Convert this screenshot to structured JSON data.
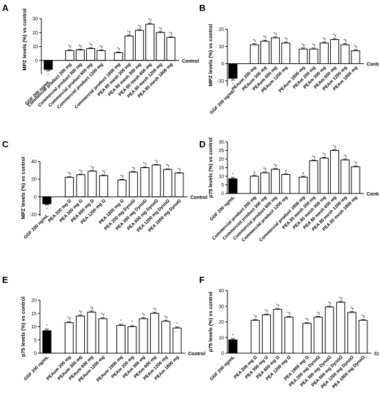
{
  "chart_data": [
    {
      "panel": "A",
      "type": "bar",
      "ylabel": "MPZ levels (%) vs control",
      "baseline_label": "Control",
      "yticks": [
        0,
        10,
        20,
        30
      ],
      "ylim": [
        -10,
        32
      ],
      "categories": [
        "GGF 200 ng/mL",
        "Commercial product 200 mg",
        "Commercial product 300 mg",
        "Commercial product 600 mg",
        "Commercial product 1200 mg",
        "Commercial product 1800 mg",
        "PEA 80 mesh 200 mg",
        "PEA 80 mesh 300 mg",
        "PEA 80 mesh 600 mg",
        "PEA 80 mesh 1200 mg",
        "PEA 80 mesh 1800 mg"
      ],
      "values": [
        -6.5,
        7,
        7.5,
        8.5,
        7,
        5.5,
        17.5,
        21.5,
        26,
        20,
        16.5
      ],
      "errors": [
        1,
        0.7,
        0.6,
        0.6,
        0.6,
        0.6,
        0.7,
        0.7,
        0.7,
        0.7,
        0.6
      ],
      "annotations": [
        "*",
        "*γ",
        "*γ",
        "*γ",
        "*γ",
        "*γ",
        "*γ",
        "*γ",
        "*γ",
        "*γ",
        "*γ"
      ],
      "groups": [
        1,
        5
      ]
    },
    {
      "panel": "B",
      "type": "bar",
      "ylabel": "MPZ levels (%) vs control",
      "baseline_label": "Control",
      "yticks": [
        -10,
        0,
        10,
        20
      ],
      "ylim": [
        -13,
        21
      ],
      "categories": [
        "GGF 200 ng/mL",
        "PEAum 200 mg",
        "PEAum 300 mg",
        "PEAum 600 mg",
        "PEAum 1200 mg",
        "PEAum 1800 mg",
        "PEAm 200 mg",
        "PEAm 300 mg",
        "PEAm 600 mg",
        "PEAm 1200 mg",
        "PEAm 1800 mg"
      ],
      "values": [
        -8.5,
        11,
        13,
        15,
        12,
        8.5,
        8.5,
        12,
        14,
        11,
        7.5
      ],
      "errors": [
        1,
        0.6,
        0.6,
        0.6,
        0.6,
        0.6,
        0.6,
        0.6,
        0.6,
        0.6,
        0.6
      ],
      "annotations": [
        "*",
        "*γ",
        "*γ",
        "*γ",
        "*γ",
        "*γ",
        "*γ",
        "*γ",
        "*γ",
        "*γ",
        "*γ"
      ],
      "groups": [
        1,
        5
      ]
    },
    {
      "panel": "C",
      "type": "bar",
      "ylabel": "MPZ levels (%) vs control",
      "baseline_label": "Control",
      "yticks": [
        -20,
        0,
        20,
        40
      ],
      "ylim": [
        -22,
        42
      ],
      "categories": [
        "GGF 200 ng/mL",
        "PEA 200 mg Ω",
        "PEA 300 mg Ω",
        "PEA 600 mg Ω",
        "PEA 1200 mg Ω",
        "PEA 1800 mg Ω",
        "PEA 200 mg DynoΩ",
        "PEA 300 mg DynoΩ",
        "PEA 600 mg DynoΩ",
        "PEA 1200 mg DynoΩ",
        "PEA 1800 mg DynoΩ"
      ],
      "values": [
        -8,
        22,
        25,
        29,
        24,
        19,
        28,
        33,
        36,
        31,
        27
      ],
      "errors": [
        1,
        0.7,
        0.7,
        0.7,
        0.7,
        0.7,
        0.7,
        0.7,
        0.7,
        0.7,
        0.7
      ],
      "annotations": [
        "*",
        "*γ",
        "*γ",
        "*γ",
        "*γ",
        "*γ",
        "*γ",
        "*γ",
        "*γ",
        "*γ",
        "*γ"
      ],
      "groups": [
        1,
        5
      ]
    },
    {
      "panel": "D",
      "type": "bar",
      "ylabel": "p75 levels (%) vs control",
      "baseline_label": "Control",
      "yticks": [
        0,
        5,
        10,
        15,
        20,
        25,
        30
      ],
      "ylim": [
        0,
        30
      ],
      "categories": [
        "GGF 200 ng/mL",
        "Commercial product 200 mg",
        "Commercial product 300 mg",
        "Commercial product 600 mg",
        "Commercial product 1200 mg",
        "Commercial product 1800 mg",
        "PEA 80 mesh 200 mg",
        "PEA 80 mesh 300 mg",
        "PEA 80 mesh 600 mg",
        "PEA 80 mesh 1200 mg",
        "PEA 80 mesh 1800 mg"
      ],
      "values": [
        8.5,
        10,
        12,
        14,
        11,
        9.5,
        19,
        20.5,
        25,
        19.5,
        15.5
      ],
      "errors": [
        0.8,
        0.5,
        0.5,
        0.5,
        0.5,
        0.5,
        0.5,
        0.5,
        0.5,
        0.5,
        0.5
      ],
      "annotations": [
        "*",
        "γ",
        "*γ",
        "*γ",
        "γ",
        "γ",
        "*γ",
        "*γ",
        "*γ",
        "*γ",
        "*γ"
      ],
      "groups": [
        1,
        5
      ]
    },
    {
      "panel": "E",
      "type": "bar",
      "ylabel": "p75 levels (%) vs control",
      "baseline_label": "Control",
      "yticks": [
        0,
        5,
        10,
        15,
        20
      ],
      "ylim": [
        0,
        20
      ],
      "categories": [
        "GGF 200 ng/mL",
        "PEAum 200 mg",
        "PEAum 300 mg",
        "PEAum 600 mg",
        "PEAum 1200 mg",
        "PEAum 1800 mg",
        "PEAm 200 mg",
        "PEAm 300 mg",
        "PEAm 600 mg",
        "PEAm 1200 mg",
        "PEAm 1800 mg"
      ],
      "values": [
        8.5,
        11.5,
        14,
        15.5,
        13,
        10.5,
        10,
        13,
        15,
        12,
        9.5
      ],
      "errors": [
        0.6,
        0.4,
        0.4,
        0.4,
        0.4,
        0.4,
        0.4,
        0.4,
        0.4,
        0.4,
        0.4
      ],
      "annotations": [
        "*",
        "*γ",
        "*γ",
        "*γ",
        "*γ",
        "*",
        "*",
        "*γ",
        "*γ",
        "*γ",
        "*"
      ],
      "groups": [
        1,
        5
      ]
    },
    {
      "panel": "F",
      "type": "bar",
      "ylabel": "p75 levels (%) vs control",
      "baseline_label": "Control",
      "yticks": [
        0,
        10,
        20,
        30,
        40
      ],
      "ylim": [
        0,
        40
      ],
      "categories": [
        "GGF 200 ng/mL",
        "PEA 200 mg Ω",
        "PEA 300 mg Ω",
        "PEA 600 mg Ω",
        "PEA 1200 mg Ω",
        "PEA 1800 mg Ω",
        "PEA 200 mg DynoΩ",
        "PEA 300 mg DynoΩ",
        "PEA 600 mg DynoΩ",
        "PEA 1200 mg DynoΩ",
        "PEA 1800 mg DynoΩ"
      ],
      "values": [
        8.5,
        21,
        24.5,
        28,
        23,
        19,
        23,
        29.5,
        32.5,
        26,
        21
      ],
      "errors": [
        0.8,
        0.5,
        0.5,
        0.5,
        0.5,
        0.5,
        0.5,
        0.5,
        0.5,
        0.5,
        0.5
      ],
      "annotations": [
        "*",
        "*γ",
        "*γ",
        "*γ",
        "*γ",
        "*γ",
        "*γ",
        "*γ",
        "*γ",
        "*γ",
        "*γ"
      ],
      "groups": [
        1,
        5
      ]
    }
  ]
}
